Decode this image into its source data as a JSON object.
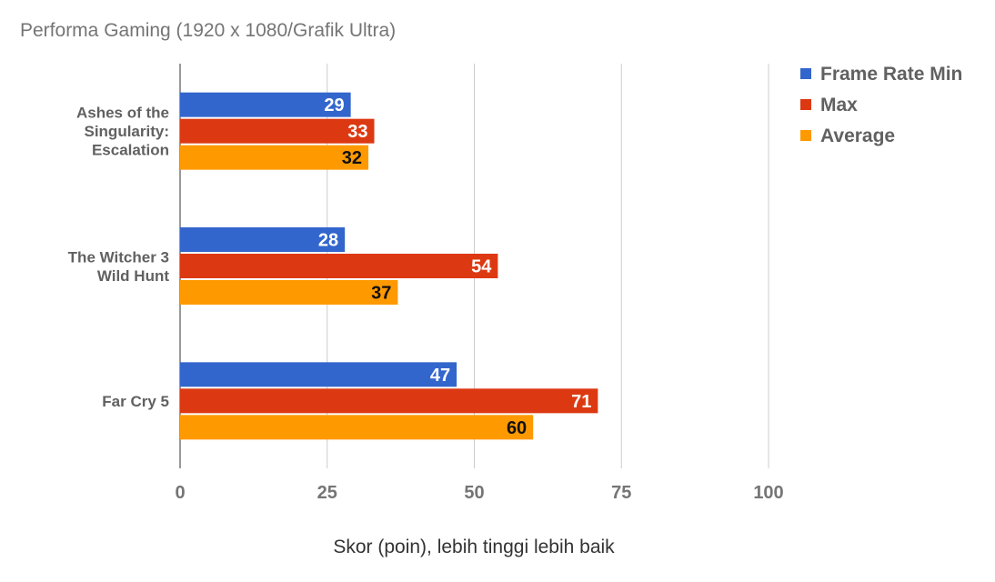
{
  "title": "Performa Gaming (1920 x 1080/Grafik Ultra)",
  "chart_data": {
    "type": "bar",
    "orientation": "horizontal",
    "title": "Performa Gaming (1920 x 1080/Grafik Ultra)",
    "xlabel": "Skor (poin), lebih tinggi lebih baik",
    "ylabel": "",
    "xlim": [
      0,
      100
    ],
    "xticks": [
      0,
      25,
      50,
      75,
      100
    ],
    "grid": "vertical",
    "legend_position": "top-right",
    "categories": [
      [
        "Ashes of the",
        "Singularity:",
        "Escalation"
      ],
      [
        "The Witcher 3",
        "Wild Hunt"
      ],
      [
        "Far Cry 5"
      ]
    ],
    "series": [
      {
        "name": "Frame Rate Min",
        "color": "#3366cc",
        "label_color": "#ffffff",
        "values": [
          29,
          28,
          47
        ]
      },
      {
        "name": "Max",
        "color": "#dc3912",
        "label_color": "#ffffff",
        "values": [
          33,
          54,
          71
        ]
      },
      {
        "name": "Average",
        "color": "#ff9900",
        "label_color": "#111111",
        "values": [
          32,
          37,
          60
        ]
      }
    ]
  }
}
